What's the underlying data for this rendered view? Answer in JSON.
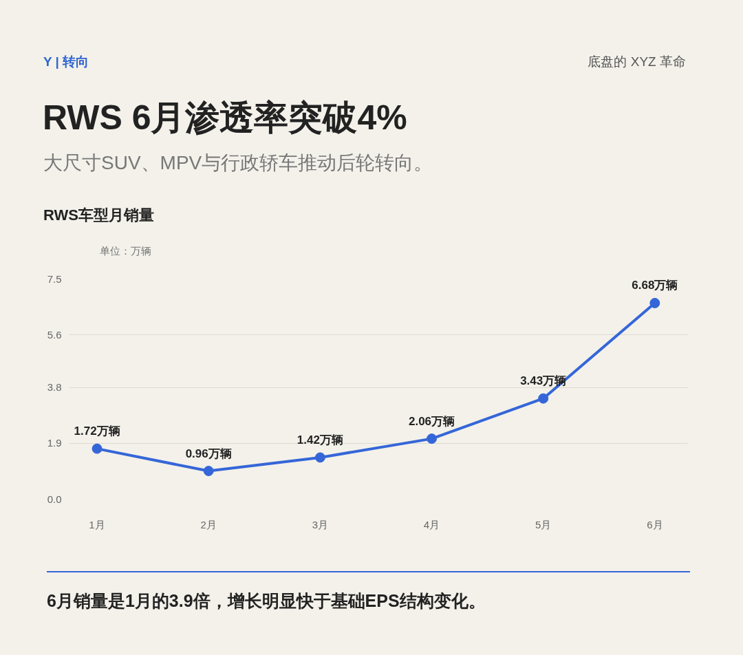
{
  "chart_data": {
    "type": "line",
    "title": "RWS 6月渗透率突破4%",
    "subtitle": "大尺寸SUV、MPV与行政轿车推动后轮转向。",
    "ylabel": "单位：万辆",
    "annotations": [
      "Y | 转向",
      "底盘的 XYZ 革命",
      "RWS车型月销量",
      "6月销量是1月的3.9倍，增长明显快于基础EPS结构变化。"
    ],
    "categories": [
      "1月",
      "2月",
      "3月",
      "4月",
      "5月",
      "6月"
    ],
    "series": [
      {
        "color": "#3566d8",
        "values": [
          1.72,
          0.96,
          1.42,
          2.06,
          3.43,
          6.68
        ],
        "value_labels": [
          "1.72万辆",
          "0.96万辆",
          "1.42万辆",
          "2.06万辆",
          "3.43万辆",
          "6.68万辆"
        ]
      }
    ],
    "ylim": [
      0,
      7.5
    ],
    "yticks": [
      {
        "value": 0,
        "label": "0.0"
      },
      1.9,
      3.8,
      5.6,
      7.5
    ],
    "grid": "y",
    "marker": "circle",
    "line_style": "solid"
  }
}
